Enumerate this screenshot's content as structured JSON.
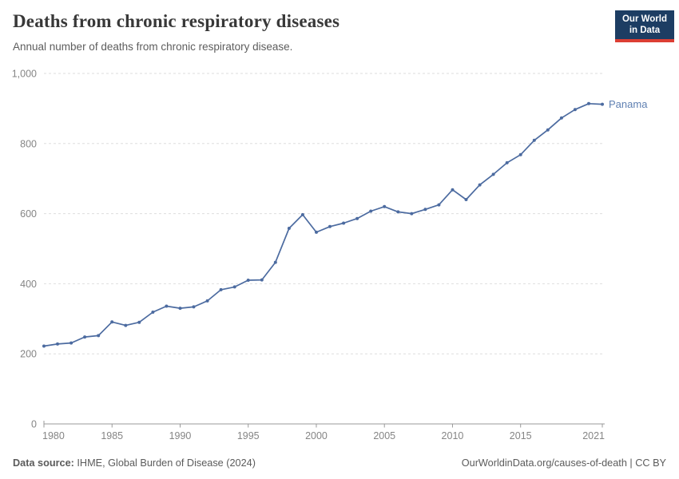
{
  "header": {
    "title": "Deaths from chronic respiratory diseases",
    "subtitle": "Annual number of deaths from chronic respiratory disease.",
    "logo": {
      "line1": "Our World",
      "line2": "in Data",
      "bg_color": "#1d3d63",
      "accent_color": "#dc3e34"
    }
  },
  "chart_data": {
    "type": "line",
    "title": "Deaths from chronic respiratory diseases",
    "xlabel": "",
    "ylabel": "",
    "xlim": [
      1980,
      2021
    ],
    "ylim": [
      0,
      1000
    ],
    "x_ticks": [
      1980,
      1985,
      1990,
      1995,
      2000,
      2005,
      2010,
      2015,
      2021
    ],
    "y_ticks": [
      0,
      200,
      400,
      600,
      800,
      1000
    ],
    "y_tick_labels": [
      "0",
      "200",
      "400",
      "600",
      "800",
      "1,000"
    ],
    "grid": "horizontal-dashed",
    "legend_position": "end-of-line-label",
    "series": [
      {
        "name": "Panama",
        "color": "#4c6ba0",
        "label_color": "#5f80b2",
        "x": [
          1980,
          1981,
          1982,
          1983,
          1984,
          1985,
          1986,
          1987,
          1988,
          1989,
          1990,
          1991,
          1992,
          1993,
          1994,
          1995,
          1996,
          1997,
          1998,
          1999,
          2000,
          2001,
          2002,
          2003,
          2004,
          2005,
          2006,
          2007,
          2008,
          2009,
          2010,
          2011,
          2012,
          2013,
          2014,
          2015,
          2016,
          2017,
          2018,
          2019,
          2020,
          2021
        ],
        "values": [
          222,
          228,
          231,
          248,
          252,
          291,
          281,
          290,
          319,
          336,
          330,
          334,
          351,
          383,
          391,
          410,
          411,
          461,
          558,
          597,
          547,
          563,
          573,
          586,
          607,
          620,
          605,
          600,
          612,
          625,
          668,
          640,
          682,
          712,
          745,
          768,
          809,
          839,
          873,
          897,
          914,
          912
        ]
      }
    ],
    "colors": {
      "gridline": "#dedede",
      "axis": "#999999",
      "tick_label": "#858585"
    }
  },
  "footer": {
    "source_label": "Data source:",
    "source_text": "IHME, Global Burden of Disease (2024)",
    "rights": "OurWorldinData.org/causes-of-death | CC BY"
  }
}
